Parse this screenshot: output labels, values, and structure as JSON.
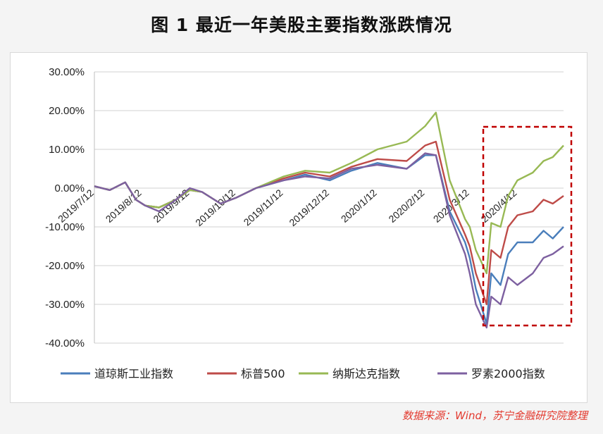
{
  "title": "图 1 最近一年美股主要指数涨跌情况",
  "source": "数据来源：Wind，苏宁金融研究院整理",
  "colors": {
    "dow": "#4a7ebb",
    "sp500": "#be4b48",
    "nasdaq": "#98b954",
    "russell": "#7d60a0",
    "highlight": "#c00000"
  },
  "chart_data": {
    "type": "line",
    "title": "图 1 最近一年美股主要指数涨跌情况",
    "ylim": [
      -40,
      30
    ],
    "yticks": [
      "30.00%",
      "20.00%",
      "10.00%",
      "0.00%",
      "-10.00%",
      "-20.00%",
      "-30.00%",
      "-40.00%"
    ],
    "xticks": [
      "2019/7/12",
      "2019/8/12",
      "2019/9/12",
      "2019/10/12",
      "2019/11/12",
      "2019/12/12",
      "2020/1/12",
      "2020/2/12",
      "2020/3/12",
      "2020/4/12"
    ],
    "x": [
      "2019/7/12",
      "2019/7/22",
      "2019/8/1",
      "2019/8/8",
      "2019/8/14",
      "2019/8/23",
      "2019/9/3",
      "2019/9/12",
      "2019/9/20",
      "2019/10/2",
      "2019/10/12",
      "2019/10/25",
      "2019/11/12",
      "2019/11/26",
      "2019/12/12",
      "2019/12/26",
      "2020/1/12",
      "2020/1/31",
      "2020/2/12",
      "2020/2/19",
      "2020/2/28",
      "2020/3/9",
      "2020/3/12",
      "2020/3/16",
      "2020/3/23",
      "2020/3/26",
      "2020/4/1",
      "2020/4/6",
      "2020/4/12",
      "2020/4/22",
      "2020/4/29",
      "2020/5/5",
      "2020/5/12"
    ],
    "series": [
      {
        "name": "道琼斯工业指数",
        "key": "dow",
        "values": [
          0.5,
          -0.5,
          1.5,
          -3,
          -4.5,
          -5,
          -3,
          -0.5,
          -1,
          -4,
          -2.5,
          0,
          2,
          3.5,
          2,
          4.5,
          6.5,
          5,
          8.5,
          8.5,
          -6,
          -14,
          -18,
          -26,
          -35,
          -22,
          -25,
          -17,
          -14,
          -14,
          -11,
          -13,
          -10
        ]
      },
      {
        "name": "标普500",
        "key": "sp500",
        "values": [
          0.5,
          -0.5,
          1.5,
          -3,
          -4.5,
          -5,
          -3,
          -0.5,
          -1,
          -4,
          -2.5,
          0,
          2.5,
          4,
          3,
          5.5,
          7.5,
          7,
          11,
          12,
          -3,
          -12,
          -15,
          -22,
          -30,
          -16,
          -18,
          -10,
          -7,
          -6,
          -3,
          -4,
          -2
        ]
      },
      {
        "name": "纳斯达克指数",
        "key": "nasdaq",
        "values": [
          0.5,
          -0.5,
          1.5,
          -3,
          -4.5,
          -5,
          -3,
          -0.5,
          -1,
          -4,
          -2.5,
          0,
          3,
          4.5,
          4,
          6.5,
          10,
          12,
          16,
          19.5,
          2,
          -8,
          -10,
          -16,
          -22,
          -9,
          -10,
          -2,
          2,
          4,
          7,
          8,
          11
        ]
      },
      {
        "name": "罗素2000指数",
        "key": "russell",
        "values": [
          0.5,
          -0.5,
          1.5,
          -3,
          -4.5,
          -6,
          -3,
          0,
          -1,
          -4,
          -2.5,
          0,
          2,
          3,
          2.5,
          5,
          6,
          5,
          9,
          8.5,
          -7,
          -17,
          -22,
          -30,
          -36,
          -28,
          -30,
          -23,
          -25,
          -22,
          -18,
          -17,
          -15
        ]
      }
    ],
    "legend_position": "bottom",
    "grid": true
  }
}
